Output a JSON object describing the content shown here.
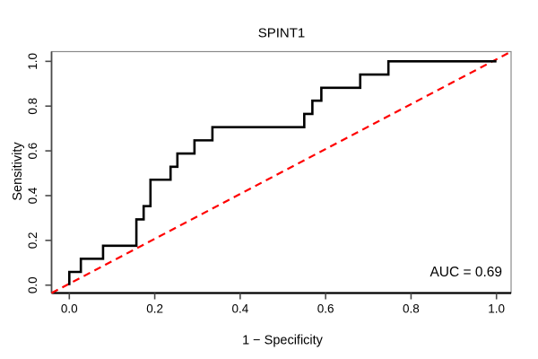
{
  "title": "SPINT1",
  "auc": {
    "text": "AUC = 0.69",
    "value": 0.69
  },
  "chart_data": {
    "type": "line",
    "subtype": "roc-step-curve",
    "title": "SPINT1",
    "xlabel": "1 − Specificity",
    "ylabel": "Sensitivity",
    "xlim": [
      0,
      1
    ],
    "ylim": [
      0,
      1
    ],
    "grid": false,
    "legend": null,
    "x_tick_values": [
      0.0,
      0.2,
      0.4,
      0.6,
      0.8,
      1.0
    ],
    "x_tick_labels": [
      "0.0",
      "0.2",
      "0.4",
      "0.6",
      "0.8",
      "1.0"
    ],
    "y_tick_values": [
      0.0,
      0.2,
      0.4,
      0.6,
      0.8,
      1.0
    ],
    "y_tick_labels": [
      "0.0",
      "0.2",
      "0.4",
      "0.6",
      "0.8",
      "1.0"
    ],
    "annotation": {
      "text": "AUC = 0.69",
      "position": "bottom-right"
    },
    "series": [
      {
        "name": "ROC curve",
        "type": "step",
        "color": "#000000",
        "line_style": "solid",
        "line_width": 2,
        "points": [
          [
            0.0,
            0.0
          ],
          [
            0.0,
            0.059
          ],
          [
            0.027,
            0.059
          ],
          [
            0.027,
            0.118
          ],
          [
            0.079,
            0.118
          ],
          [
            0.079,
            0.176
          ],
          [
            0.157,
            0.176
          ],
          [
            0.157,
            0.294
          ],
          [
            0.174,
            0.294
          ],
          [
            0.174,
            0.353
          ],
          [
            0.19,
            0.353
          ],
          [
            0.19,
            0.471
          ],
          [
            0.237,
            0.471
          ],
          [
            0.237,
            0.529
          ],
          [
            0.253,
            0.529
          ],
          [
            0.253,
            0.588
          ],
          [
            0.293,
            0.588
          ],
          [
            0.293,
            0.647
          ],
          [
            0.335,
            0.647
          ],
          [
            0.335,
            0.706
          ],
          [
            0.55,
            0.706
          ],
          [
            0.55,
            0.765
          ],
          [
            0.569,
            0.765
          ],
          [
            0.569,
            0.824
          ],
          [
            0.59,
            0.824
          ],
          [
            0.59,
            0.882
          ],
          [
            0.681,
            0.882
          ],
          [
            0.681,
            0.941
          ],
          [
            0.747,
            0.941
          ],
          [
            0.747,
            1.0
          ],
          [
            1.0,
            1.0
          ]
        ]
      },
      {
        "name": "Reference diagonal",
        "type": "line",
        "color": "#FF0000",
        "line_style": "dashed",
        "line_width": 2,
        "points": [
          [
            0,
            0
          ],
          [
            1,
            1
          ]
        ]
      }
    ]
  }
}
